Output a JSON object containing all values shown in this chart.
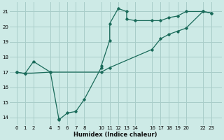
{
  "xlabel": "Humidex (Indice chaleur)",
  "bg_color": "#cdeae6",
  "grid_color": "#a8cdc9",
  "line_color": "#1a6b5a",
  "xlim": [
    -0.8,
    24.2
  ],
  "ylim": [
    13.5,
    21.6
  ],
  "xticks": [
    0,
    1,
    2,
    4,
    5,
    6,
    7,
    8,
    10,
    11,
    12,
    13,
    14,
    16,
    17,
    18,
    19,
    20,
    22,
    23
  ],
  "yticks": [
    14,
    15,
    16,
    17,
    18,
    19,
    20,
    21
  ],
  "curve1": [
    [
      0,
      17.0
    ],
    [
      1,
      16.9
    ],
    [
      2,
      17.7
    ],
    [
      4,
      17.0
    ],
    [
      5,
      13.9
    ],
    [
      5,
      13.85
    ],
    [
      6,
      14.3
    ],
    [
      7,
      14.4
    ],
    [
      8,
      15.2
    ],
    [
      10,
      17.3
    ],
    [
      10,
      17.4
    ],
    [
      11,
      19.1
    ],
    [
      11,
      20.2
    ],
    [
      12,
      21.2
    ],
    [
      13,
      21.0
    ],
    [
      13,
      20.5
    ],
    [
      14,
      20.4
    ],
    [
      16,
      20.4
    ],
    [
      17,
      20.4
    ],
    [
      18,
      20.6
    ],
    [
      19,
      20.7
    ],
    [
      20,
      21.0
    ],
    [
      22,
      21.0
    ],
    [
      23,
      20.9
    ]
  ],
  "curve2": [
    [
      0,
      17.0
    ],
    [
      1,
      16.9
    ],
    [
      4,
      17.0
    ],
    [
      10,
      17.0
    ],
    [
      11,
      17.3
    ],
    [
      16,
      18.5
    ],
    [
      17,
      19.2
    ],
    [
      18,
      19.5
    ],
    [
      19,
      19.7
    ],
    [
      20,
      19.9
    ],
    [
      22,
      21.0
    ],
    [
      23,
      20.9
    ]
  ]
}
